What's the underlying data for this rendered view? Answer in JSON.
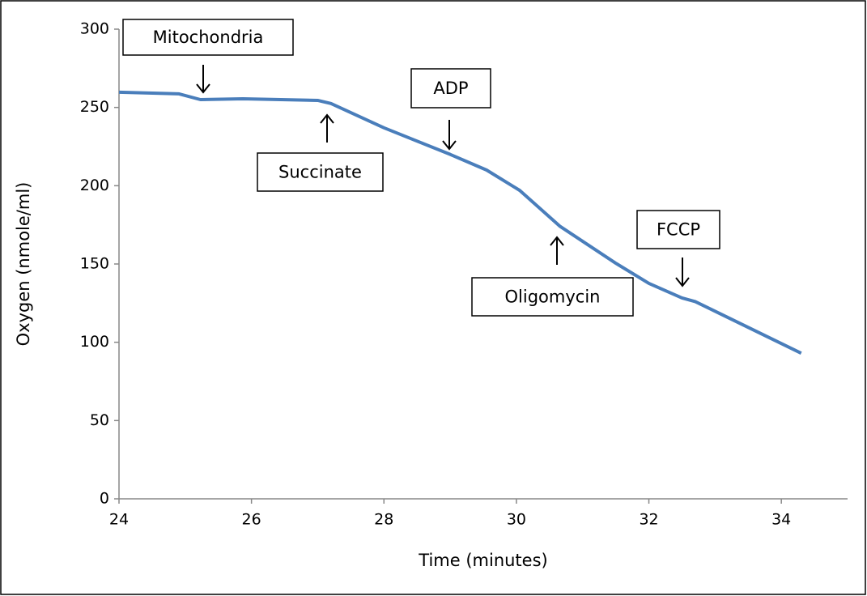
{
  "chart_data": {
    "type": "line",
    "x_label": "Time (minutes)",
    "y_label": "Oxygen (nmole/ml)",
    "xlim": [
      24,
      35
    ],
    "xticks": [
      24,
      26,
      28,
      30,
      32,
      34
    ],
    "ylim": [
      0,
      300
    ],
    "yticks": [
      0,
      50,
      100,
      150,
      200,
      250,
      300
    ],
    "series": [
      {
        "color": "#4a7ebb",
        "x": [
          24,
          24.9,
          25.23,
          25.87,
          27.0,
          27.2,
          28.0,
          29.0,
          29.55,
          30.05,
          30.66,
          31.5,
          32.0,
          32.5,
          32.7,
          34.3
        ],
        "values": [
          259.7,
          258.7,
          255,
          255.5,
          254.5,
          252.5,
          237,
          220,
          210,
          197,
          174,
          150.5,
          137.6,
          128.3,
          126,
          93
        ]
      }
    ],
    "annotations": [
      "Mitochondria",
      "Succinate",
      "ADP",
      "Oligomycin",
      "FCCP"
    ]
  }
}
